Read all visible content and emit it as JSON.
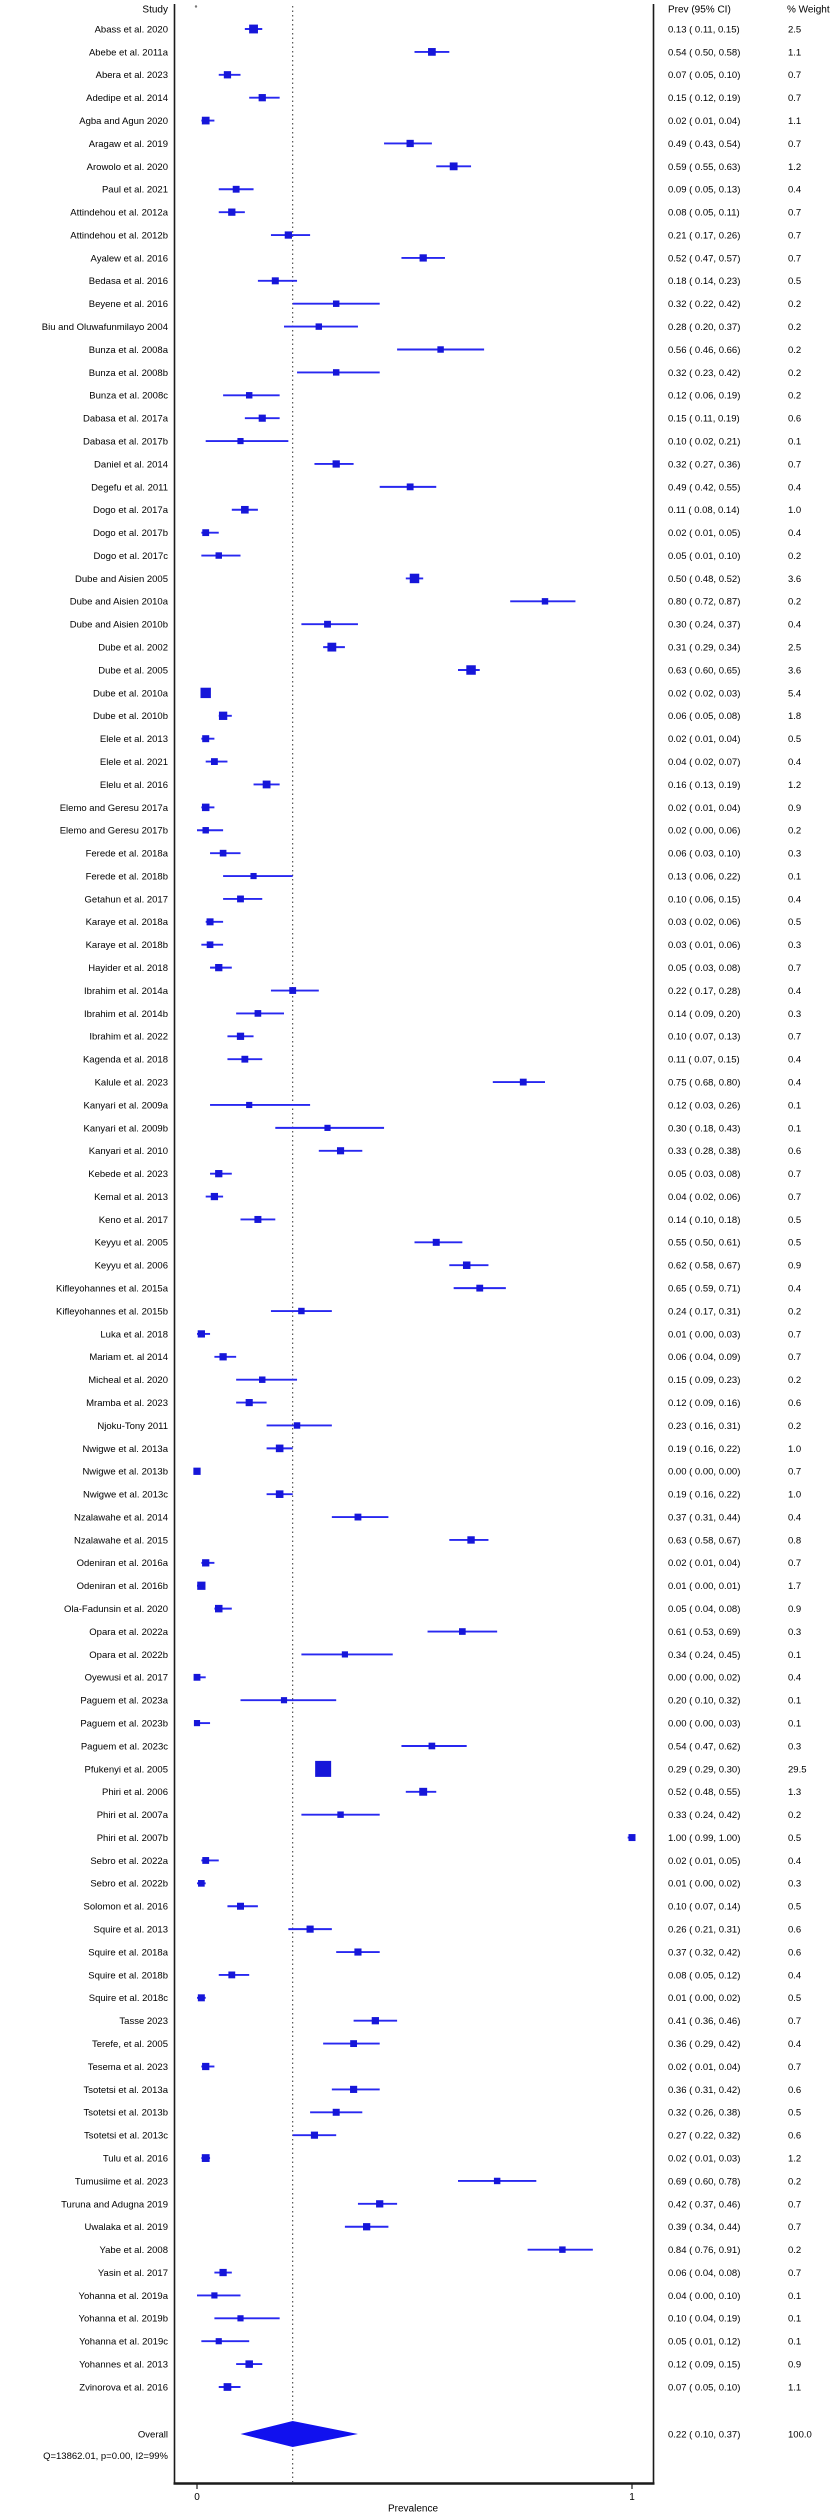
{
  "chart_data": {
    "type": "forest",
    "title": "",
    "xlabel": "Prevalence",
    "axis_range": [
      0,
      1
    ],
    "x_tick_labels": [
      "0",
      "1"
    ],
    "grid": false,
    "columns": {
      "study": "Study",
      "prev_ci": "Prev (95% CI)",
      "weight": "% Weight"
    },
    "heterogeneity_text": "Q=13862.01, p=0.00, I2=99%",
    "overall": {
      "label": "Overall",
      "prev": 0.22,
      "lo": 0.1,
      "hi": 0.37,
      "weight": 100.0
    },
    "colors": {
      "marker": "#1616d9",
      "ci_line": "#2828f0",
      "diamond": "#1111ee",
      "text": "#000000",
      "border": "#1a1a1a",
      "zero_line": "#333333"
    },
    "studies": [
      {
        "label": "Abass  et al. 2020",
        "prev": 0.13,
        "lo": 0.11,
        "hi": 0.15,
        "weight": 2.5
      },
      {
        "label": "Abebe et al. 2011a",
        "prev": 0.54,
        "lo": 0.5,
        "hi": 0.58,
        "weight": 1.1
      },
      {
        "label": "Abera et al. 2023",
        "prev": 0.07,
        "lo": 0.05,
        "hi": 0.1,
        "weight": 0.7
      },
      {
        "label": "Adedipe et al. 2014",
        "prev": 0.15,
        "lo": 0.12,
        "hi": 0.19,
        "weight": 0.7
      },
      {
        "label": "Agba and Agun 2020",
        "prev": 0.02,
        "lo": 0.01,
        "hi": 0.04,
        "weight": 1.1
      },
      {
        "label": "Aragaw et al. 2019",
        "prev": 0.49,
        "lo": 0.43,
        "hi": 0.54,
        "weight": 0.7
      },
      {
        "label": "Arowolo et al. 2020",
        "prev": 0.59,
        "lo": 0.55,
        "hi": 0.63,
        "weight": 1.2
      },
      {
        "label": "Paul et al. 2021",
        "prev": 0.09,
        "lo": 0.05,
        "hi": 0.13,
        "weight": 0.4
      },
      {
        "label": "Attindehou et al. 2012a",
        "prev": 0.08,
        "lo": 0.05,
        "hi": 0.11,
        "weight": 0.7
      },
      {
        "label": "Attindehou et al. 2012b",
        "prev": 0.21,
        "lo": 0.17,
        "hi": 0.26,
        "weight": 0.7
      },
      {
        "label": "Ayalew et al. 2016",
        "prev": 0.52,
        "lo": 0.47,
        "hi": 0.57,
        "weight": 0.7
      },
      {
        "label": "Bedasa et al. 2016",
        "prev": 0.18,
        "lo": 0.14,
        "hi": 0.23,
        "weight": 0.5
      },
      {
        "label": "Beyene et al. 2016",
        "prev": 0.32,
        "lo": 0.22,
        "hi": 0.42,
        "weight": 0.2
      },
      {
        "label": "Biu and Oluwafunmilayo 2004",
        "prev": 0.28,
        "lo": 0.2,
        "hi": 0.37,
        "weight": 0.2
      },
      {
        "label": "Bunza et al. 2008a",
        "prev": 0.56,
        "lo": 0.46,
        "hi": 0.66,
        "weight": 0.2
      },
      {
        "label": "Bunza et al. 2008b",
        "prev": 0.32,
        "lo": 0.23,
        "hi": 0.42,
        "weight": 0.2
      },
      {
        "label": "Bunza et al. 2008c",
        "prev": 0.12,
        "lo": 0.06,
        "hi": 0.19,
        "weight": 0.2
      },
      {
        "label": "Dabasa et al. 2017a",
        "prev": 0.15,
        "lo": 0.11,
        "hi": 0.19,
        "weight": 0.6
      },
      {
        "label": "Dabasa et al. 2017b",
        "prev": 0.1,
        "lo": 0.02,
        "hi": 0.21,
        "weight": 0.1
      },
      {
        "label": "Daniel et al. 2014",
        "prev": 0.32,
        "lo": 0.27,
        "hi": 0.36,
        "weight": 0.7
      },
      {
        "label": "Degefu et al. 2011",
        "prev": 0.49,
        "lo": 0.42,
        "hi": 0.55,
        "weight": 0.4
      },
      {
        "label": "Dogo et al. 2017a",
        "prev": 0.11,
        "lo": 0.08,
        "hi": 0.14,
        "weight": 1.0
      },
      {
        "label": "Dogo et al. 2017b",
        "prev": 0.02,
        "lo": 0.01,
        "hi": 0.05,
        "weight": 0.4
      },
      {
        "label": "Dogo et al. 2017c",
        "prev": 0.05,
        "lo": 0.01,
        "hi": 0.1,
        "weight": 0.2
      },
      {
        "label": "Dube and Aisien 2005",
        "prev": 0.5,
        "lo": 0.48,
        "hi": 0.52,
        "weight": 3.6
      },
      {
        "label": "Dube and Aisien 2010a",
        "prev": 0.8,
        "lo": 0.72,
        "hi": 0.87,
        "weight": 0.2
      },
      {
        "label": "Dube and Aisien 2010b",
        "prev": 0.3,
        "lo": 0.24,
        "hi": 0.37,
        "weight": 0.4
      },
      {
        "label": "Dube et al. 2002",
        "prev": 0.31,
        "lo": 0.29,
        "hi": 0.34,
        "weight": 2.5
      },
      {
        "label": "Dube et al. 2005",
        "prev": 0.63,
        "lo": 0.6,
        "hi": 0.65,
        "weight": 3.6
      },
      {
        "label": "Dube et al. 2010a",
        "prev": 0.02,
        "lo": 0.02,
        "hi": 0.03,
        "weight": 5.4
      },
      {
        "label": "Dube et al. 2010b",
        "prev": 0.06,
        "lo": 0.05,
        "hi": 0.08,
        "weight": 1.8
      },
      {
        "label": "Elele et al. 2013",
        "prev": 0.02,
        "lo": 0.01,
        "hi": 0.04,
        "weight": 0.5
      },
      {
        "label": "Elele et al. 2021",
        "prev": 0.04,
        "lo": 0.02,
        "hi": 0.07,
        "weight": 0.4
      },
      {
        "label": "Elelu et al. 2016",
        "prev": 0.16,
        "lo": 0.13,
        "hi": 0.19,
        "weight": 1.2
      },
      {
        "label": "Elemo and Geresu 2017a",
        "prev": 0.02,
        "lo": 0.01,
        "hi": 0.04,
        "weight": 0.9
      },
      {
        "label": "Elemo and Geresu 2017b",
        "prev": 0.02,
        "lo": 0.0,
        "hi": 0.06,
        "weight": 0.2
      },
      {
        "label": "Ferede et al. 2018a",
        "prev": 0.06,
        "lo": 0.03,
        "hi": 0.1,
        "weight": 0.3
      },
      {
        "label": "Ferede et al. 2018b",
        "prev": 0.13,
        "lo": 0.06,
        "hi": 0.22,
        "weight": 0.1
      },
      {
        "label": "Getahun et al. 2017",
        "prev": 0.1,
        "lo": 0.06,
        "hi": 0.15,
        "weight": 0.4
      },
      {
        "label": "Karaye et al. 2018a",
        "prev": 0.03,
        "lo": 0.02,
        "hi": 0.06,
        "weight": 0.5
      },
      {
        "label": "Karaye et al. 2018b",
        "prev": 0.03,
        "lo": 0.01,
        "hi": 0.06,
        "weight": 0.3
      },
      {
        "label": "Hayider et al. 2018",
        "prev": 0.05,
        "lo": 0.03,
        "hi": 0.08,
        "weight": 0.7
      },
      {
        "label": "Ibrahim et al. 2014a",
        "prev": 0.22,
        "lo": 0.17,
        "hi": 0.28,
        "weight": 0.4
      },
      {
        "label": "Ibrahim et al. 2014b",
        "prev": 0.14,
        "lo": 0.09,
        "hi": 0.2,
        "weight": 0.3
      },
      {
        "label": "Ibrahim et al. 2022",
        "prev": 0.1,
        "lo": 0.07,
        "hi": 0.13,
        "weight": 0.7
      },
      {
        "label": "Kagenda et al. 2018",
        "prev": 0.11,
        "lo": 0.07,
        "hi": 0.15,
        "weight": 0.4
      },
      {
        "label": "Kalule et al. 2023",
        "prev": 0.75,
        "lo": 0.68,
        "hi": 0.8,
        "weight": 0.4
      },
      {
        "label": "Kanyari et al. 2009a",
        "prev": 0.12,
        "lo": 0.03,
        "hi": 0.26,
        "weight": 0.1
      },
      {
        "label": "Kanyari et al. 2009b",
        "prev": 0.3,
        "lo": 0.18,
        "hi": 0.43,
        "weight": 0.1
      },
      {
        "label": "Kanyari et al. 2010",
        "prev": 0.33,
        "lo": 0.28,
        "hi": 0.38,
        "weight": 0.6
      },
      {
        "label": "Kebede et al. 2023",
        "prev": 0.05,
        "lo": 0.03,
        "hi": 0.08,
        "weight": 0.7
      },
      {
        "label": "Kemal et al. 2013",
        "prev": 0.04,
        "lo": 0.02,
        "hi": 0.06,
        "weight": 0.7
      },
      {
        "label": "Keno et al. 2017",
        "prev": 0.14,
        "lo": 0.1,
        "hi": 0.18,
        "weight": 0.5
      },
      {
        "label": "Keyyu et al. 2005",
        "prev": 0.55,
        "lo": 0.5,
        "hi": 0.61,
        "weight": 0.5
      },
      {
        "label": "Keyyu et al. 2006",
        "prev": 0.62,
        "lo": 0.58,
        "hi": 0.67,
        "weight": 0.9
      },
      {
        "label": "Kifleyohannes et al. 2015a",
        "prev": 0.65,
        "lo": 0.59,
        "hi": 0.71,
        "weight": 0.4
      },
      {
        "label": "Kifleyohannes et al. 2015b",
        "prev": 0.24,
        "lo": 0.17,
        "hi": 0.31,
        "weight": 0.2
      },
      {
        "label": "Luka et al. 2018",
        "prev": 0.01,
        "lo": 0.0,
        "hi": 0.03,
        "weight": 0.7
      },
      {
        "label": "Mariam et. al 2014",
        "prev": 0.06,
        "lo": 0.04,
        "hi": 0.09,
        "weight": 0.7
      },
      {
        "label": "Micheal et al. 2020",
        "prev": 0.15,
        "lo": 0.09,
        "hi": 0.23,
        "weight": 0.2
      },
      {
        "label": "Mramba et al. 2023",
        "prev": 0.12,
        "lo": 0.09,
        "hi": 0.16,
        "weight": 0.6
      },
      {
        "label": "Njoku-Tony 2011",
        "prev": 0.23,
        "lo": 0.16,
        "hi": 0.31,
        "weight": 0.2
      },
      {
        "label": "Nwigwe et al. 2013a",
        "prev": 0.19,
        "lo": 0.16,
        "hi": 0.22,
        "weight": 1.0
      },
      {
        "label": "Nwigwe et al. 2013b",
        "prev": 0.0,
        "lo": 0.0,
        "hi": 0.0,
        "weight": 0.7
      },
      {
        "label": "Nwigwe et al. 2013c",
        "prev": 0.19,
        "lo": 0.16,
        "hi": 0.22,
        "weight": 1.0
      },
      {
        "label": "Nzalawahe et al. 2014",
        "prev": 0.37,
        "lo": 0.31,
        "hi": 0.44,
        "weight": 0.4
      },
      {
        "label": "Nzalawahe et al. 2015",
        "prev": 0.63,
        "lo": 0.58,
        "hi": 0.67,
        "weight": 0.8
      },
      {
        "label": "Odeniran et al. 2016a",
        "prev": 0.02,
        "lo": 0.01,
        "hi": 0.04,
        "weight": 0.7
      },
      {
        "label": "Odeniran et al. 2016b",
        "prev": 0.01,
        "lo": 0.0,
        "hi": 0.01,
        "weight": 1.7
      },
      {
        "label": "Ola-Fadunsin et al. 2020",
        "prev": 0.05,
        "lo": 0.04,
        "hi": 0.08,
        "weight": 0.9
      },
      {
        "label": "Opara et al. 2022a",
        "prev": 0.61,
        "lo": 0.53,
        "hi": 0.69,
        "weight": 0.3
      },
      {
        "label": "Opara et al. 2022b",
        "prev": 0.34,
        "lo": 0.24,
        "hi": 0.45,
        "weight": 0.1
      },
      {
        "label": "Oyewusi et al. 2017",
        "prev": 0.0,
        "lo": 0.0,
        "hi": 0.02,
        "weight": 0.4
      },
      {
        "label": "Paguem et al. 2023a",
        "prev": 0.2,
        "lo": 0.1,
        "hi": 0.32,
        "weight": 0.1
      },
      {
        "label": "Paguem et al. 2023b",
        "prev": 0.0,
        "lo": 0.0,
        "hi": 0.03,
        "weight": 0.1
      },
      {
        "label": "Paguem et al. 2023c",
        "prev": 0.54,
        "lo": 0.47,
        "hi": 0.62,
        "weight": 0.3
      },
      {
        "label": "Pfukenyi et al. 2005",
        "prev": 0.29,
        "lo": 0.29,
        "hi": 0.3,
        "weight": 29.5
      },
      {
        "label": "Phiri et al. 2006",
        "prev": 0.52,
        "lo": 0.48,
        "hi": 0.55,
        "weight": 1.3
      },
      {
        "label": "Phiri et al. 2007a",
        "prev": 0.33,
        "lo": 0.24,
        "hi": 0.42,
        "weight": 0.2
      },
      {
        "label": "Phiri et al. 2007b",
        "prev": 1.0,
        "lo": 0.99,
        "hi": 1.0,
        "weight": 0.5
      },
      {
        "label": "Sebro et al. 2022a",
        "prev": 0.02,
        "lo": 0.01,
        "hi": 0.05,
        "weight": 0.4
      },
      {
        "label": "Sebro et al. 2022b",
        "prev": 0.01,
        "lo": 0.0,
        "hi": 0.02,
        "weight": 0.3
      },
      {
        "label": "Solomon et al. 2016",
        "prev": 0.1,
        "lo": 0.07,
        "hi": 0.14,
        "weight": 0.5
      },
      {
        "label": "Squire et al. 2013",
        "prev": 0.26,
        "lo": 0.21,
        "hi": 0.31,
        "weight": 0.6
      },
      {
        "label": "Squire et al. 2018a",
        "prev": 0.37,
        "lo": 0.32,
        "hi": 0.42,
        "weight": 0.6
      },
      {
        "label": "Squire et al. 2018b",
        "prev": 0.08,
        "lo": 0.05,
        "hi": 0.12,
        "weight": 0.4
      },
      {
        "label": "Squire et al. 2018c",
        "prev": 0.01,
        "lo": 0.0,
        "hi": 0.02,
        "weight": 0.5
      },
      {
        "label": "Tasse 2023",
        "prev": 0.41,
        "lo": 0.36,
        "hi": 0.46,
        "weight": 0.7
      },
      {
        "label": "Terefe, et al. 2005",
        "prev": 0.36,
        "lo": 0.29,
        "hi": 0.42,
        "weight": 0.4
      },
      {
        "label": "Tesema et al. 2023",
        "prev": 0.02,
        "lo": 0.01,
        "hi": 0.04,
        "weight": 0.7
      },
      {
        "label": "Tsotetsi et al. 2013a",
        "prev": 0.36,
        "lo": 0.31,
        "hi": 0.42,
        "weight": 0.6
      },
      {
        "label": "Tsotetsi et al. 2013b",
        "prev": 0.32,
        "lo": 0.26,
        "hi": 0.38,
        "weight": 0.5
      },
      {
        "label": "Tsotetsi et al. 2013c",
        "prev": 0.27,
        "lo": 0.22,
        "hi": 0.32,
        "weight": 0.6
      },
      {
        "label": "Tulu et al. 2016",
        "prev": 0.02,
        "lo": 0.01,
        "hi": 0.03,
        "weight": 1.2
      },
      {
        "label": "Tumusiime et al. 2023",
        "prev": 0.69,
        "lo": 0.6,
        "hi": 0.78,
        "weight": 0.2
      },
      {
        "label": "Turuna and Adugna 2019",
        "prev": 0.42,
        "lo": 0.37,
        "hi": 0.46,
        "weight": 0.7
      },
      {
        "label": "Uwalaka et al. 2019",
        "prev": 0.39,
        "lo": 0.34,
        "hi": 0.44,
        "weight": 0.7
      },
      {
        "label": "Yabe et al. 2008",
        "prev": 0.84,
        "lo": 0.76,
        "hi": 0.91,
        "weight": 0.2
      },
      {
        "label": "Yasin et al. 2017",
        "prev": 0.06,
        "lo": 0.04,
        "hi": 0.08,
        "weight": 0.7
      },
      {
        "label": "Yohanna et al. 2019a",
        "prev": 0.04,
        "lo": 0.0,
        "hi": 0.1,
        "weight": 0.1
      },
      {
        "label": "Yohanna et al. 2019b",
        "prev": 0.1,
        "lo": 0.04,
        "hi": 0.19,
        "weight": 0.1
      },
      {
        "label": "Yohanna et al. 2019c",
        "prev": 0.05,
        "lo": 0.01,
        "hi": 0.12,
        "weight": 0.1
      },
      {
        "label": "Yohannes et al. 2013",
        "prev": 0.12,
        "lo": 0.09,
        "hi": 0.15,
        "weight": 0.9
      },
      {
        "label": "Zvinorova et al. 2016",
        "prev": 0.07,
        "lo": 0.05,
        "hi": 0.1,
        "weight": 1.1
      }
    ]
  }
}
